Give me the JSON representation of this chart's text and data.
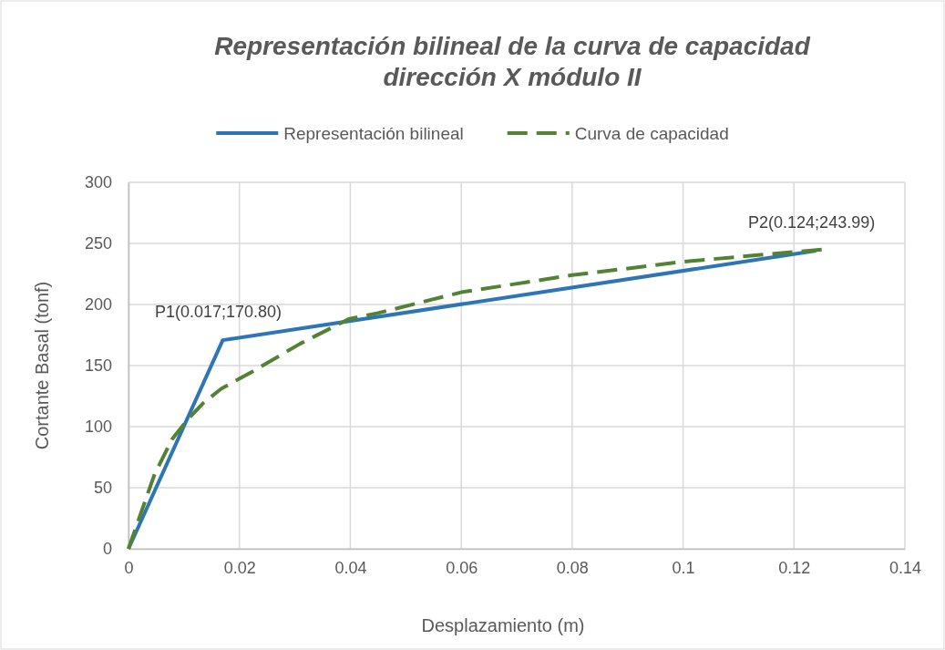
{
  "chart_data": {
    "type": "line",
    "title": "Representación bilineal de la curva de capacidad dirección X módulo II",
    "xlabel": "Desplazamiento (m)",
    "ylabel": "Cortante Basal  (tonf)",
    "xlim": [
      0,
      0.14
    ],
    "xticks": [
      0,
      0.02,
      0.04,
      0.06,
      0.08,
      {
        "value": 0.1,
        "label": "0.1"
      },
      0.12,
      0.14
    ],
    "ylim": [
      0,
      300
    ],
    "yticks": [
      0,
      50,
      100,
      150,
      200,
      250,
      300
    ],
    "grid": true,
    "legend": "top",
    "series": [
      {
        "name": "Representación bilineal",
        "color": "#2e75b6",
        "line_style": "solid",
        "x": [
          0,
          0.017,
          0.124
        ],
        "values": [
          0,
          170.8,
          243.99
        ]
      },
      {
        "name": "Curva de capacidad",
        "color": "#548235",
        "line_style": "dashed",
        "x": [
          0,
          0.0016,
          0.0047,
          0.0079,
          0.0107,
          0.0134,
          0.0167,
          0.0227,
          0.031,
          0.0397,
          0.045,
          0.06,
          0.08,
          0.1,
          0.125
        ],
        "values": [
          0,
          21,
          61,
          90,
          106,
          119,
          131,
          146,
          168,
          188,
          193,
          210,
          224,
          235,
          245
        ]
      }
    ],
    "annotations": [
      {
        "text": "P1(0.017;170.80)",
        "x": 0.017,
        "y": 170.8
      },
      {
        "text": "P2(0.124;243.99)",
        "x": 0.124,
        "y": 243.99
      }
    ]
  }
}
